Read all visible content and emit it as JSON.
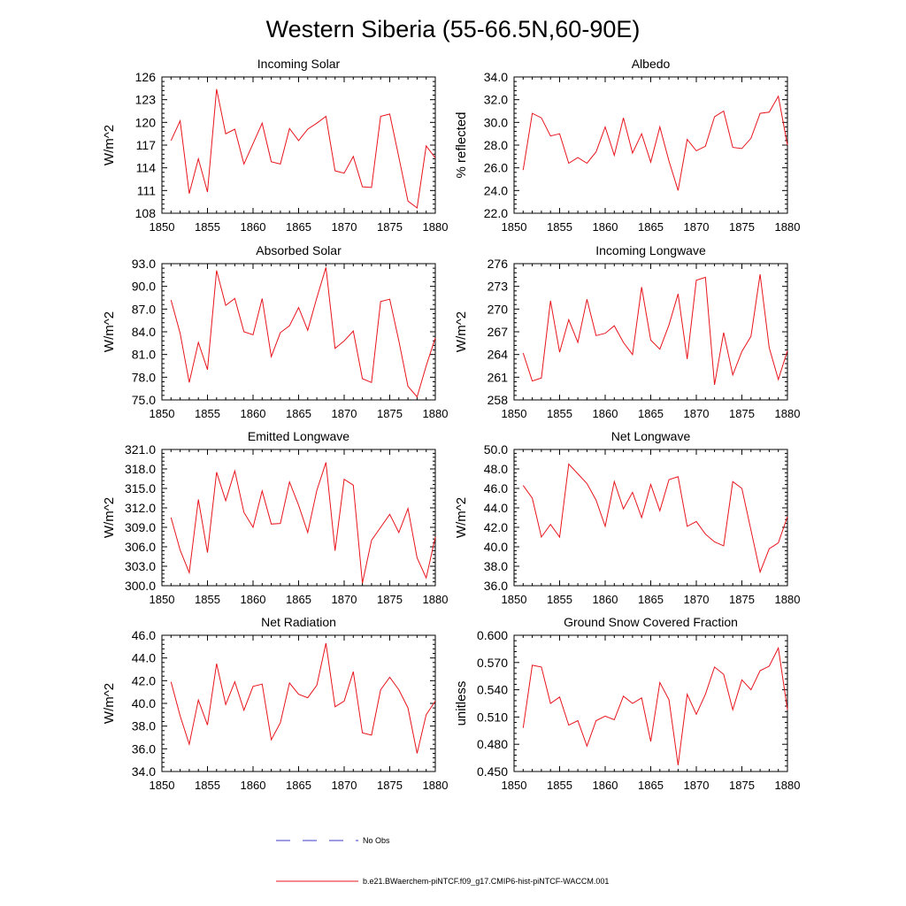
{
  "figure": {
    "title": "Western Siberia (55-66.5N,60-90E)",
    "series_color": "#e8141c",
    "obs_color": "#3a3acd",
    "legend": [
      {
        "label": "No Obs",
        "style": "dashed",
        "color": "#3a3acd"
      },
      {
        "label": "b.e21.BWaerchem-piNTCF.f09_g17.CMIP6-hist-piNTCF-WACCM.001",
        "style": "solid",
        "color": "#e8141c"
      }
    ]
  },
  "chart_data": [
    {
      "type": "line",
      "title": "Incoming Solar",
      "ylabel": "W/m^2",
      "xlim": [
        1850,
        1880
      ],
      "ylim": [
        108,
        126
      ],
      "xticks": [
        "1850",
        "1855",
        "1860",
        "1865",
        "1870",
        "1875",
        "1880"
      ],
      "yticks": [
        "108",
        "111",
        "114",
        "117",
        "120",
        "123",
        "126"
      ],
      "x": [
        1851,
        1852,
        1853,
        1854,
        1855,
        1856,
        1857,
        1858,
        1859,
        1860,
        1861,
        1862,
        1863,
        1864,
        1865,
        1866,
        1867,
        1868,
        1869,
        1870,
        1871,
        1872,
        1873,
        1874,
        1875,
        1876,
        1877,
        1878,
        1879,
        1880
      ],
      "values": [
        117.6,
        120.2,
        110.6,
        115.2,
        110.8,
        124.4,
        118.5,
        119.1,
        114.5,
        117.2,
        119.9,
        114.8,
        114.5,
        119.2,
        117.6,
        119.1,
        119.9,
        120.8,
        113.6,
        113.3,
        115.5,
        111.5,
        111.4,
        120.8,
        121.1,
        115.4,
        109.6,
        108.7,
        116.9,
        115.3
      ]
    },
    {
      "type": "line",
      "title": "Albedo",
      "ylabel": "% reflected",
      "xlim": [
        1850,
        1880
      ],
      "ylim": [
        22.0,
        34.0
      ],
      "xticks": [
        "1850",
        "1855",
        "1860",
        "1865",
        "1870",
        "1875",
        "1880"
      ],
      "yticks": [
        "22.0",
        "24.0",
        "26.0",
        "28.0",
        "30.0",
        "32.0",
        "34.0"
      ],
      "x": [
        1851,
        1852,
        1853,
        1854,
        1855,
        1856,
        1857,
        1858,
        1859,
        1860,
        1861,
        1862,
        1863,
        1864,
        1865,
        1866,
        1867,
        1868,
        1869,
        1870,
        1871,
        1872,
        1873,
        1874,
        1875,
        1876,
        1877,
        1878,
        1879,
        1880
      ],
      "values": [
        25.8,
        30.8,
        30.4,
        28.8,
        29.0,
        26.4,
        26.9,
        26.4,
        27.4,
        29.6,
        27.1,
        30.4,
        27.3,
        29.0,
        26.5,
        29.6,
        26.6,
        24.0,
        28.5,
        27.5,
        27.9,
        30.5,
        31.0,
        27.8,
        27.7,
        28.6,
        30.8,
        30.9,
        32.3,
        28.0
      ]
    },
    {
      "type": "line",
      "title": "Absorbed Solar",
      "ylabel": "W/m^2",
      "xlim": [
        1850,
        1880
      ],
      "ylim": [
        75.0,
        93.0
      ],
      "xticks": [
        "1850",
        "1855",
        "1860",
        "1865",
        "1870",
        "1875",
        "1880"
      ],
      "yticks": [
        "75.0",
        "78.0",
        "81.0",
        "84.0",
        "87.0",
        "90.0",
        "93.0"
      ],
      "x": [
        1851,
        1852,
        1853,
        1854,
        1855,
        1856,
        1857,
        1858,
        1859,
        1860,
        1861,
        1862,
        1863,
        1864,
        1865,
        1866,
        1867,
        1868,
        1869,
        1870,
        1871,
        1872,
        1873,
        1874,
        1875,
        1876,
        1877,
        1878,
        1879,
        1880
      ],
      "values": [
        88.2,
        83.8,
        77.3,
        82.6,
        79.0,
        92.1,
        87.5,
        88.4,
        84.0,
        83.6,
        88.4,
        80.7,
        83.9,
        84.8,
        87.2,
        84.2,
        88.5,
        92.5,
        81.8,
        82.8,
        84.1,
        77.8,
        77.3,
        88.0,
        88.3,
        82.8,
        76.8,
        75.4,
        79.5,
        83.2
      ]
    },
    {
      "type": "line",
      "title": "Incoming Longwave",
      "ylabel": "W/m^2",
      "xlim": [
        1850,
        1880
      ],
      "ylim": [
        258,
        276
      ],
      "xticks": [
        "1850",
        "1855",
        "1860",
        "1865",
        "1870",
        "1875",
        "1880"
      ],
      "yticks": [
        "258",
        "261",
        "264",
        "267",
        "270",
        "273",
        "276"
      ],
      "x": [
        1851,
        1852,
        1853,
        1854,
        1855,
        1856,
        1857,
        1858,
        1859,
        1860,
        1861,
        1862,
        1863,
        1864,
        1865,
        1866,
        1867,
        1868,
        1869,
        1870,
        1871,
        1872,
        1873,
        1874,
        1875,
        1876,
        1877,
        1878,
        1879,
        1880
      ],
      "values": [
        264.2,
        260.5,
        260.9,
        271.1,
        264.3,
        268.6,
        265.6,
        271.3,
        266.5,
        266.8,
        267.8,
        265.6,
        264.0,
        272.9,
        265.9,
        264.7,
        267.9,
        272.0,
        263.4,
        273.8,
        274.2,
        260.0,
        266.9,
        261.3,
        264.4,
        266.4,
        274.6,
        264.9,
        260.7,
        264.5
      ]
    },
    {
      "type": "line",
      "title": "Emitted Longwave",
      "ylabel": "W/m^2",
      "xlim": [
        1850,
        1880
      ],
      "ylim": [
        300.0,
        321.0
      ],
      "xticks": [
        "1850",
        "1855",
        "1860",
        "1865",
        "1870",
        "1875",
        "1880"
      ],
      "yticks": [
        "300.0",
        "303.0",
        "306.0",
        "309.0",
        "312.0",
        "315.0",
        "318.0",
        "321.0"
      ],
      "x": [
        1851,
        1852,
        1853,
        1854,
        1855,
        1856,
        1857,
        1858,
        1859,
        1860,
        1861,
        1862,
        1863,
        1864,
        1865,
        1866,
        1867,
        1868,
        1869,
        1870,
        1871,
        1872,
        1873,
        1874,
        1875,
        1876,
        1877,
        1878,
        1879,
        1880
      ],
      "values": [
        310.5,
        305.5,
        302.0,
        313.3,
        305.1,
        317.5,
        313.1,
        317.7,
        311.3,
        309.0,
        314.6,
        309.5,
        309.6,
        316.0,
        312.4,
        308.2,
        314.7,
        319.0,
        305.4,
        316.4,
        315.5,
        300.4,
        307.0,
        309.0,
        311.0,
        308.2,
        311.9,
        304.3,
        301.2,
        307.5
      ]
    },
    {
      "type": "line",
      "title": "Net Longwave",
      "ylabel": "W/m^2",
      "xlim": [
        1850,
        1880
      ],
      "ylim": [
        36.0,
        50.0
      ],
      "xticks": [
        "1850",
        "1855",
        "1860",
        "1865",
        "1870",
        "1875",
        "1880"
      ],
      "yticks": [
        "36.0",
        "38.0",
        "40.0",
        "42.0",
        "44.0",
        "46.0",
        "48.0",
        "50.0"
      ],
      "x": [
        1851,
        1852,
        1853,
        1854,
        1855,
        1856,
        1857,
        1858,
        1859,
        1860,
        1861,
        1862,
        1863,
        1864,
        1865,
        1866,
        1867,
        1868,
        1869,
        1870,
        1871,
        1872,
        1873,
        1874,
        1875,
        1876,
        1877,
        1878,
        1879,
        1880
      ],
      "values": [
        46.3,
        45.0,
        41.0,
        42.3,
        41.0,
        48.5,
        47.5,
        46.5,
        44.8,
        42.1,
        46.7,
        43.9,
        45.6,
        43.0,
        46.4,
        43.7,
        46.9,
        47.2,
        42.1,
        42.6,
        41.3,
        40.5,
        40.1,
        46.7,
        46.0,
        41.7,
        37.4,
        39.8,
        40.4,
        43.1
      ]
    },
    {
      "type": "line",
      "title": "Net Radiation",
      "ylabel": "W/m^2",
      "xlim": [
        1850,
        1880
      ],
      "ylim": [
        34.0,
        46.0
      ],
      "xticks": [
        "1850",
        "1855",
        "1860",
        "1865",
        "1870",
        "1875",
        "1880"
      ],
      "yticks": [
        "34.0",
        "36.0",
        "38.0",
        "40.0",
        "42.0",
        "44.0",
        "46.0"
      ],
      "x": [
        1851,
        1852,
        1853,
        1854,
        1855,
        1856,
        1857,
        1858,
        1859,
        1860,
        1861,
        1862,
        1863,
        1864,
        1865,
        1866,
        1867,
        1868,
        1869,
        1870,
        1871,
        1872,
        1873,
        1874,
        1875,
        1876,
        1877,
        1878,
        1879,
        1880
      ],
      "values": [
        41.9,
        38.9,
        36.4,
        40.3,
        38.1,
        43.5,
        39.9,
        41.9,
        39.4,
        41.5,
        41.7,
        36.8,
        38.3,
        41.8,
        40.8,
        40.5,
        41.6,
        45.3,
        39.7,
        40.2,
        42.8,
        37.4,
        37.2,
        41.2,
        42.3,
        41.2,
        39.6,
        35.6,
        39.0,
        40.2
      ]
    },
    {
      "type": "line",
      "title": "Ground Snow Covered Fraction",
      "ylabel": "unitless",
      "xlim": [
        1850,
        1880
      ],
      "ylim": [
        0.45,
        0.6
      ],
      "xticks": [
        "1850",
        "1855",
        "1860",
        "1865",
        "1870",
        "1875",
        "1880"
      ],
      "yticks": [
        "0.450",
        "0.480",
        "0.510",
        "0.540",
        "0.570",
        "0.600"
      ],
      "x": [
        1851,
        1852,
        1853,
        1854,
        1855,
        1856,
        1857,
        1858,
        1859,
        1860,
        1861,
        1862,
        1863,
        1864,
        1865,
        1866,
        1867,
        1868,
        1869,
        1870,
        1871,
        1872,
        1873,
        1874,
        1875,
        1876,
        1877,
        1878,
        1879,
        1880
      ],
      "values": [
        0.498,
        0.567,
        0.565,
        0.525,
        0.532,
        0.501,
        0.506,
        0.478,
        0.506,
        0.511,
        0.507,
        0.533,
        0.525,
        0.531,
        0.483,
        0.548,
        0.529,
        0.457,
        0.535,
        0.513,
        0.535,
        0.565,
        0.557,
        0.518,
        0.551,
        0.54,
        0.561,
        0.566,
        0.586,
        0.518
      ]
    }
  ]
}
